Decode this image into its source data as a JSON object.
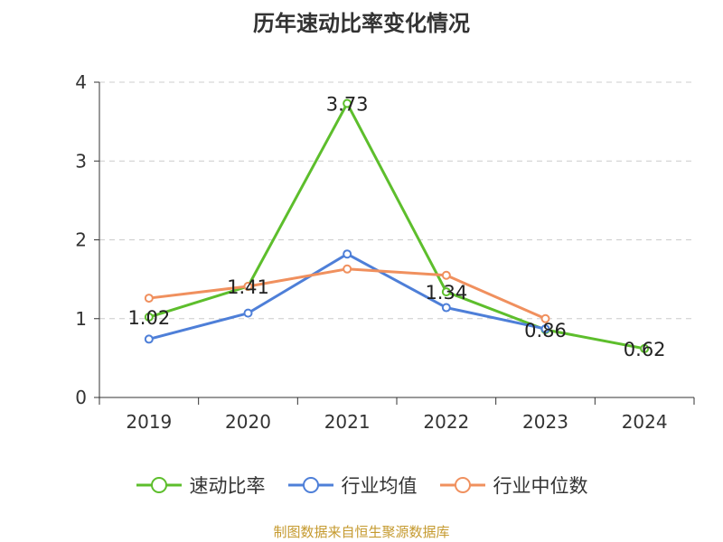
{
  "chart_data": {
    "type": "line",
    "title": "历年速动比率变化情况",
    "categories": [
      "2019",
      "2020",
      "2021",
      "2022",
      "2023",
      "2024"
    ],
    "ylim": [
      0,
      4
    ],
    "yticks": [
      0,
      1,
      2,
      3,
      4
    ],
    "grid": true,
    "legend_position": "bottom",
    "series": [
      {
        "name": "速动比率",
        "color": "#5dbe2c",
        "values": [
          1.02,
          1.41,
          3.73,
          1.34,
          0.86,
          0.62
        ],
        "show_labels": true
      },
      {
        "name": "行业均值",
        "color": "#4e7fd8",
        "values": [
          0.74,
          1.07,
          1.82,
          1.14,
          0.87,
          null
        ],
        "show_labels": false
      },
      {
        "name": "行业中位数",
        "color": "#f0905e",
        "values": [
          1.26,
          1.41,
          1.63,
          1.55,
          1.0,
          null
        ],
        "show_labels": false
      }
    ]
  },
  "source_note": "制图数据来自恒生聚源数据库"
}
